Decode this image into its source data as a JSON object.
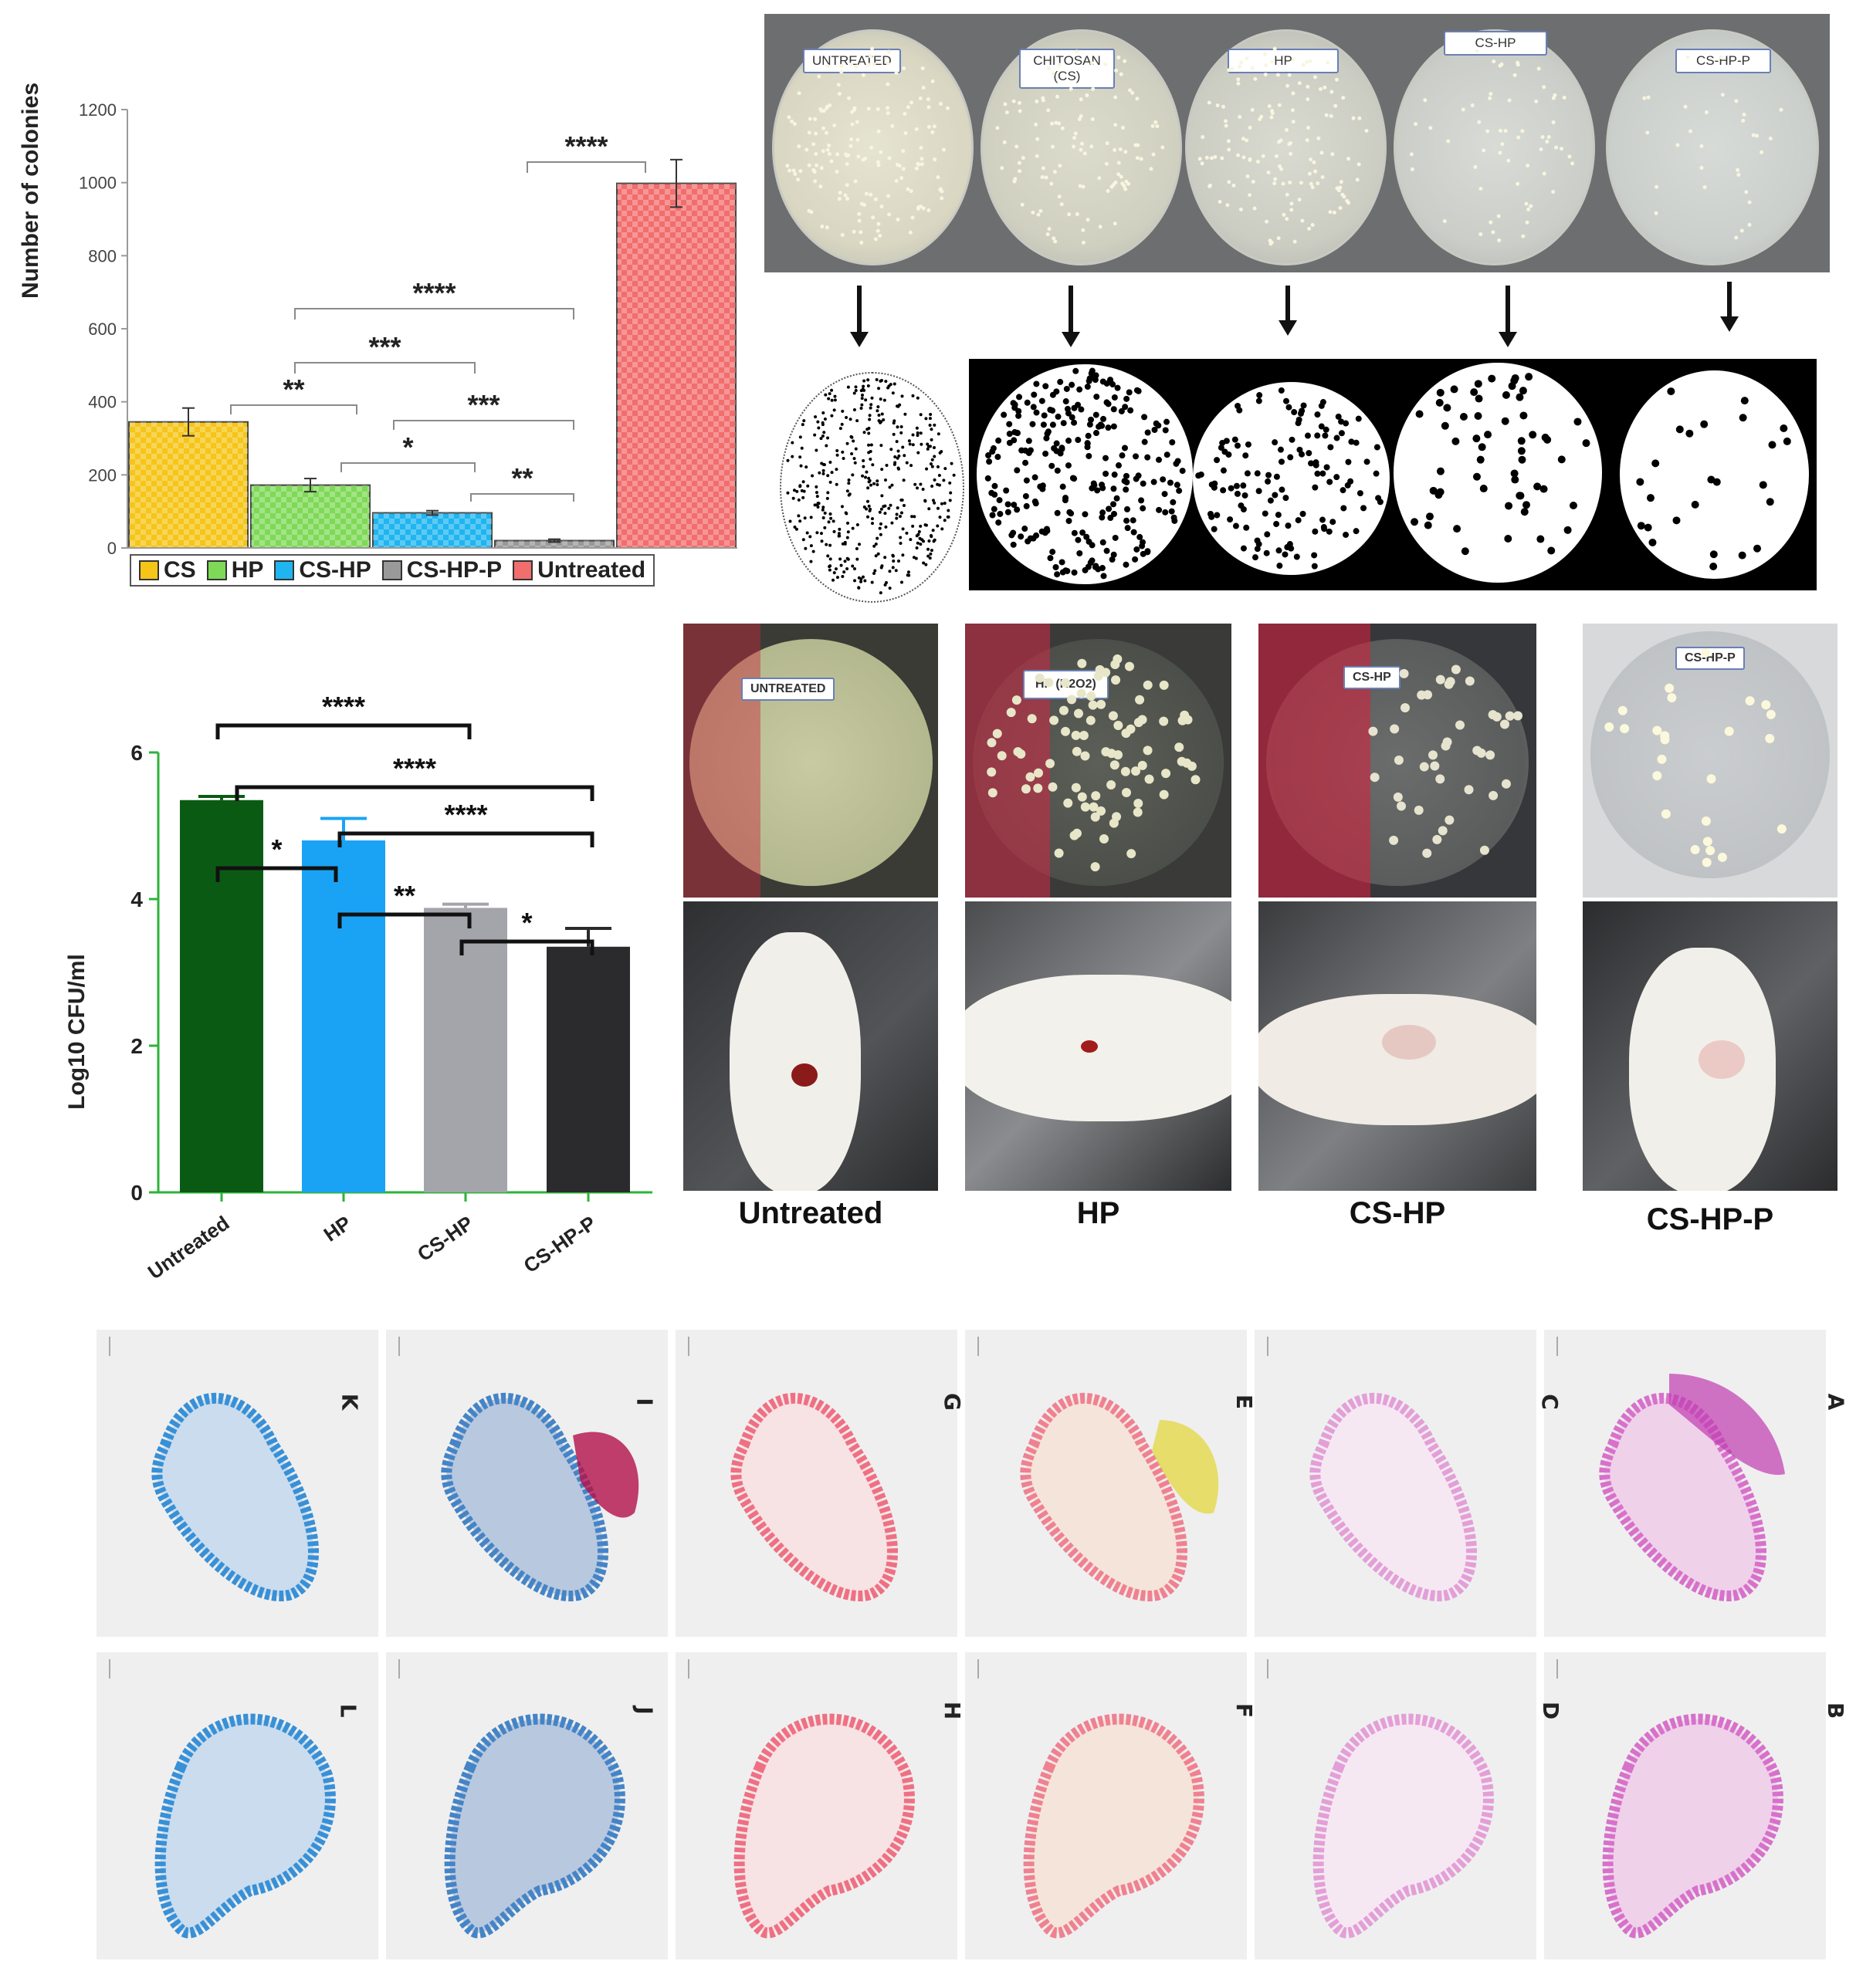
{
  "chart_data": [
    {
      "type": "bar",
      "categories": [
        "CS",
        "HP",
        "CS-HP",
        "CS-HP-P",
        "Untreated"
      ],
      "values": [
        345,
        172,
        96,
        20,
        998
      ],
      "errors": [
        38,
        18,
        6,
        4,
        65
      ],
      "ylabel": "Number of colonies",
      "ylim": [
        0,
        1200
      ],
      "yticks": [
        "0",
        "200",
        "400",
        "600",
        "800",
        "1000",
        "1200"
      ],
      "legend": [
        "CS",
        "HP",
        "CS-HP",
        "CS-HP-P",
        "Untreated"
      ],
      "legend_position": "bottom",
      "colors": [
        "#f5c518",
        "#7ed957",
        "#1fb5f0",
        "#999999",
        "#f26d6d"
      ],
      "significance": [
        {
          "from": "CS-HP-P",
          "to": "Untreated",
          "label": "****"
        },
        {
          "from": "HP",
          "to": "CS-HP-P",
          "label": "****"
        },
        {
          "from": "HP",
          "to": "CS-HP",
          "label": "***"
        },
        {
          "from": "CS",
          "to": "HP",
          "label": "**"
        },
        {
          "from": "CS-HP",
          "to": "CS-HP-P",
          "label": "***"
        },
        {
          "from": "HP",
          "to": "CS-HP",
          "label": "*"
        },
        {
          "from": "CS-HP",
          "to": "CS-HP-P",
          "label": "**"
        }
      ]
    },
    {
      "type": "bar",
      "categories": [
        "Untreated",
        "HP",
        "CS-HP",
        "CS-HP-P"
      ],
      "values": [
        5.35,
        4.8,
        3.88,
        3.35
      ],
      "errors": [
        0.05,
        0.3,
        0.05,
        0.25
      ],
      "ylabel": "Log10 CFU/ml",
      "ylim": [
        0,
        6
      ],
      "yticks": [
        "0",
        "2",
        "4",
        "6"
      ],
      "colors": [
        "#0b5a14",
        "#1aa3f5",
        "#a4a4ab",
        "#2b2b2e"
      ],
      "significance": [
        {
          "from": "Untreated",
          "to": "CS-HP",
          "label": "****"
        },
        {
          "from": "Untreated",
          "to": "CS-HP-P",
          "label": "****"
        },
        {
          "from": "HP",
          "to": "CS-HP-P",
          "label": "****"
        },
        {
          "from": "Untreated",
          "to": "HP",
          "label": "*"
        },
        {
          "from": "HP",
          "to": "CS-HP",
          "label": "**"
        },
        {
          "from": "CS-HP",
          "to": "CS-HP-P",
          "label": "*"
        }
      ]
    }
  ],
  "plates_top": {
    "labels": [
      "UNTREATED",
      "CHITOSAN (CS)",
      "HP",
      "CS-HP",
      "CS-HP-P"
    ]
  },
  "plates_mid": {
    "labels": [
      "UNTREATED",
      "HP (H2O2)",
      "CS-HP",
      "CS-HP-P"
    ]
  },
  "mouse_captions": [
    "Untreated",
    "HP",
    "CS-HP",
    "CS-HP-P"
  ],
  "histology_letters": {
    "top": [
      "K",
      "I",
      "G",
      "E",
      "C",
      "A"
    ],
    "bottom": [
      "L",
      "J",
      "H",
      "F",
      "D",
      "B"
    ]
  }
}
